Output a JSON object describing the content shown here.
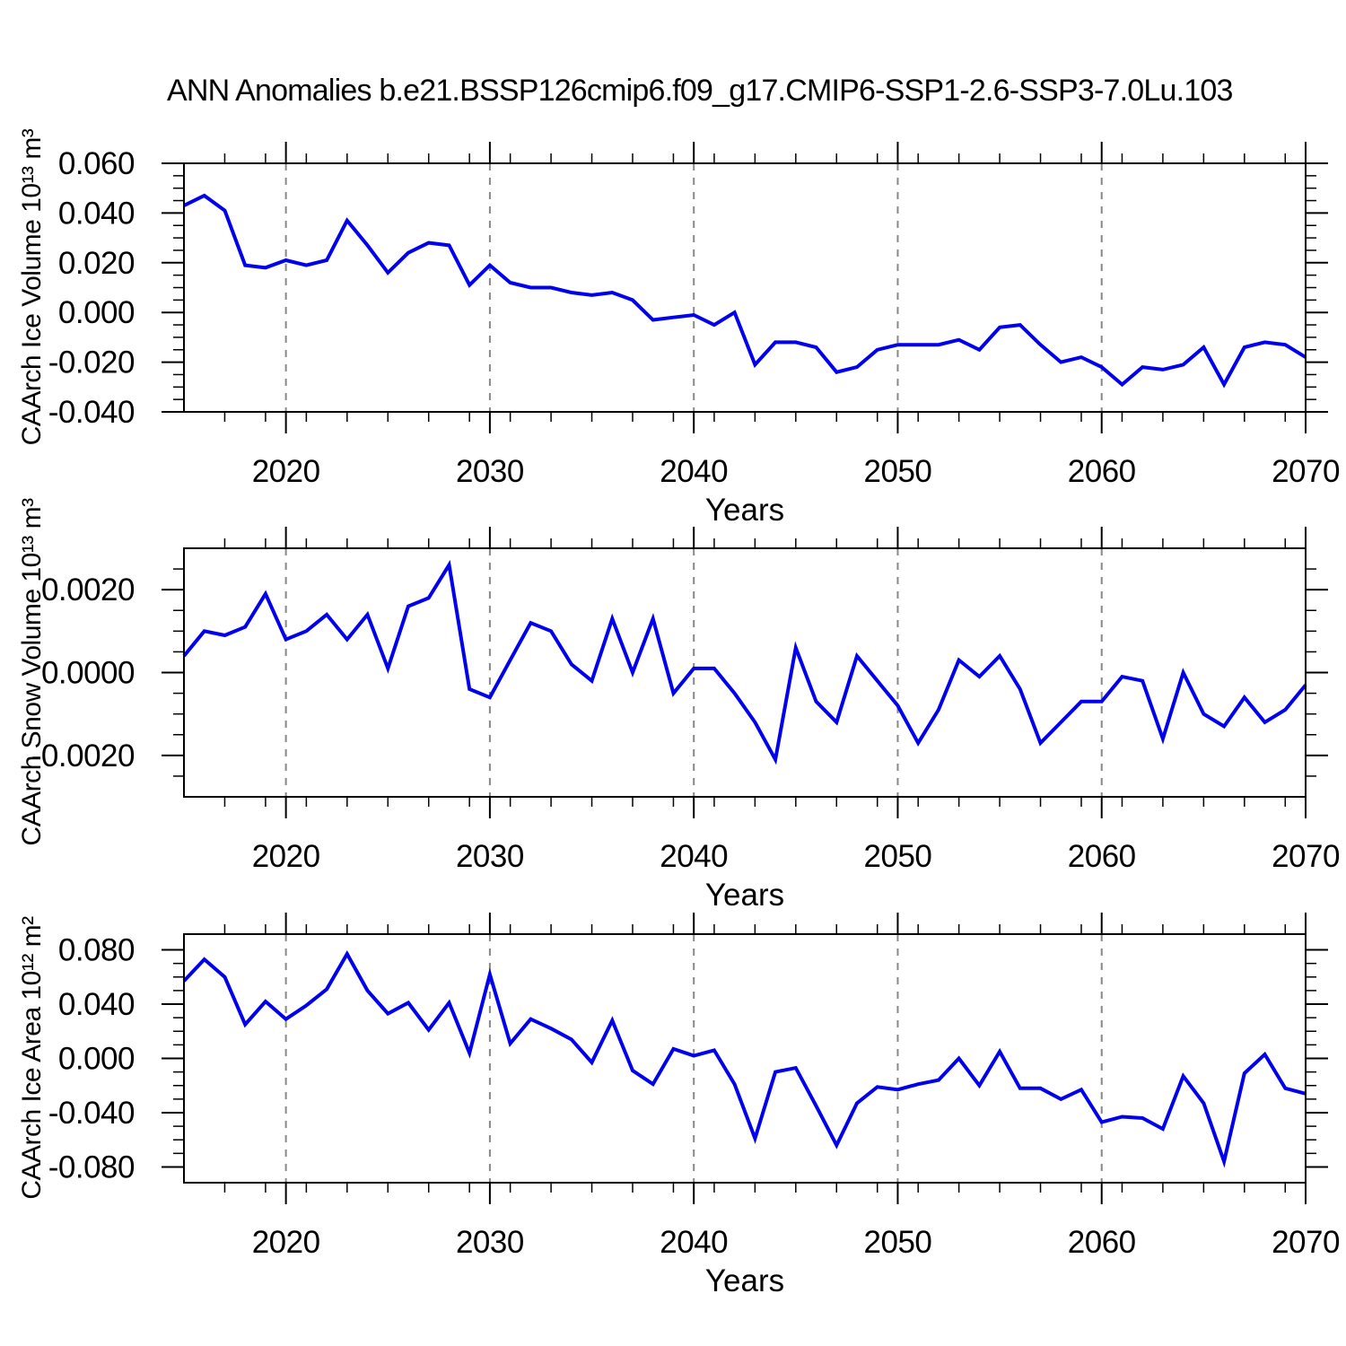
{
  "page": {
    "title": "ANN Anomalies b.e21.BSSP126cmip6.f09_g17.CMIP6-SSP1-2.6-SSP3-7.0Lu.103",
    "background": "#ffffff"
  },
  "chart_data": [
    {
      "type": "line",
      "ylabel": "CAArch Ice Volume 10¹³ m³",
      "xlabel": "Years",
      "line_color": "#0000EE",
      "gridline_color": "#888888",
      "axis_color": "#000000",
      "grid_vertical_dashed": true,
      "legend": "none",
      "xlim": [
        2015,
        2070
      ],
      "ylim": [
        -0.04,
        0.06
      ],
      "x_major_ticks": [
        {
          "value": 2020,
          "label": "2020"
        },
        {
          "value": 2030,
          "label": "2030"
        },
        {
          "value": 2040,
          "label": "2040"
        },
        {
          "value": 2050,
          "label": "2050"
        },
        {
          "value": 2060,
          "label": "2060"
        },
        {
          "value": 2070,
          "label": "2070"
        }
      ],
      "x_minor_step": 2,
      "y_major_ticks": [
        {
          "value": 0.06,
          "label": "0.060"
        },
        {
          "value": 0.04,
          "label": "0.040"
        },
        {
          "value": 0.02,
          "label": "0.020"
        },
        {
          "value": 0.0,
          "label": "0.000"
        },
        {
          "value": -0.02,
          "label": "-0.020"
        },
        {
          "value": -0.04,
          "label": "-0.040"
        }
      ],
      "y_minor_step": 0.005,
      "x": [
        2015,
        2016,
        2017,
        2018,
        2019,
        2020,
        2021,
        2022,
        2023,
        2024,
        2025,
        2026,
        2027,
        2028,
        2029,
        2030,
        2031,
        2032,
        2033,
        2034,
        2035,
        2036,
        2037,
        2038,
        2039,
        2040,
        2041,
        2042,
        2043,
        2044,
        2045,
        2046,
        2047,
        2048,
        2049,
        2050,
        2051,
        2052,
        2053,
        2054,
        2055,
        2056,
        2057,
        2058,
        2059,
        2060,
        2061,
        2062,
        2063,
        2064,
        2065,
        2066,
        2067,
        2068,
        2069,
        2070
      ],
      "values": [
        0.043,
        0.047,
        0.041,
        0.019,
        0.018,
        0.021,
        0.019,
        0.021,
        0.037,
        0.027,
        0.016,
        0.024,
        0.028,
        0.027,
        0.011,
        0.019,
        0.012,
        0.01,
        0.01,
        0.008,
        0.007,
        0.008,
        0.005,
        -0.003,
        -0.002,
        -0.001,
        -0.005,
        0.0,
        -0.021,
        -0.012,
        -0.012,
        -0.014,
        -0.024,
        -0.022,
        -0.015,
        -0.013,
        -0.013,
        -0.013,
        -0.011,
        -0.015,
        -0.006,
        -0.005,
        -0.013,
        -0.02,
        -0.018,
        -0.022,
        -0.029,
        -0.022,
        -0.023,
        -0.021,
        -0.014,
        -0.029,
        -0.014,
        -0.012,
        -0.013,
        -0.018
      ]
    },
    {
      "type": "line",
      "ylabel": "CAArch Snow Volume 10¹³ m³",
      "xlabel": "Years",
      "line_color": "#0000EE",
      "gridline_color": "#888888",
      "axis_color": "#000000",
      "grid_vertical_dashed": true,
      "legend": "none",
      "xlim": [
        2015,
        2070
      ],
      "ylim": [
        -0.003,
        0.003
      ],
      "x_major_ticks": [
        {
          "value": 2020,
          "label": "2020"
        },
        {
          "value": 2030,
          "label": "2030"
        },
        {
          "value": 2040,
          "label": "2040"
        },
        {
          "value": 2050,
          "label": "2050"
        },
        {
          "value": 2060,
          "label": "2060"
        },
        {
          "value": 2070,
          "label": "2070"
        }
      ],
      "x_minor_step": 2,
      "y_major_ticks": [
        {
          "value": 0.002,
          "label": "0.0020"
        },
        {
          "value": 0.0,
          "label": "0.0000"
        },
        {
          "value": -0.002,
          "label": "-0.0020"
        }
      ],
      "y_minor_step": 0.0005,
      "x": [
        2015,
        2016,
        2017,
        2018,
        2019,
        2020,
        2021,
        2022,
        2023,
        2024,
        2025,
        2026,
        2027,
        2028,
        2029,
        2030,
        2031,
        2032,
        2033,
        2034,
        2035,
        2036,
        2037,
        2038,
        2039,
        2040,
        2041,
        2042,
        2043,
        2044,
        2045,
        2046,
        2047,
        2048,
        2049,
        2050,
        2051,
        2052,
        2053,
        2054,
        2055,
        2056,
        2057,
        2058,
        2059,
        2060,
        2061,
        2062,
        2063,
        2064,
        2065,
        2066,
        2067,
        2068,
        2069,
        2070
      ],
      "values": [
        0.0004,
        0.001,
        0.0009,
        0.0011,
        0.0019,
        0.0008,
        0.001,
        0.0014,
        0.0008,
        0.0014,
        0.0001,
        0.0016,
        0.0018,
        0.0026,
        -0.0004,
        -0.0006,
        0.0003,
        0.0012,
        0.001,
        0.0002,
        -0.0002,
        0.0013,
        0.0,
        0.0013,
        -0.0005,
        0.0001,
        0.0001,
        -0.0005,
        -0.0012,
        -0.0021,
        0.0006,
        -0.0007,
        -0.0012,
        0.0004,
        -0.0002,
        -0.0008,
        -0.0017,
        -0.0009,
        0.0003,
        -0.0001,
        0.0004,
        -0.0004,
        -0.0017,
        -0.0012,
        -0.0007,
        -0.0007,
        -0.0001,
        -0.0002,
        -0.0016,
        0.0,
        -0.001,
        -0.0013,
        -0.0006,
        -0.0012,
        -0.0009,
        -0.0003
      ]
    },
    {
      "type": "line",
      "ylabel": "CAArch Ice Area 10¹² m²",
      "xlabel": "Years",
      "line_color": "#0000EE",
      "gridline_color": "#888888",
      "axis_color": "#000000",
      "grid_vertical_dashed": true,
      "legend": "none",
      "xlim": [
        2015,
        2070
      ],
      "ylim": [
        -0.0916,
        0.0916
      ],
      "x_major_ticks": [
        {
          "value": 2020,
          "label": "2020"
        },
        {
          "value": 2030,
          "label": "2030"
        },
        {
          "value": 2040,
          "label": "2040"
        },
        {
          "value": 2050,
          "label": "2050"
        },
        {
          "value": 2060,
          "label": "2060"
        },
        {
          "value": 2070,
          "label": "2070"
        }
      ],
      "x_minor_step": 2,
      "y_major_ticks": [
        {
          "value": 0.08,
          "label": "0.080"
        },
        {
          "value": 0.04,
          "label": "0.040"
        },
        {
          "value": 0.0,
          "label": "0.000"
        },
        {
          "value": -0.04,
          "label": "-0.040"
        },
        {
          "value": -0.08,
          "label": "-0.080"
        }
      ],
      "y_minor_step": 0.01,
      "x": [
        2015,
        2016,
        2017,
        2018,
        2019,
        2020,
        2021,
        2022,
        2023,
        2024,
        2025,
        2026,
        2027,
        2028,
        2029,
        2030,
        2031,
        2032,
        2033,
        2034,
        2035,
        2036,
        2037,
        2038,
        2039,
        2040,
        2041,
        2042,
        2043,
        2044,
        2045,
        2046,
        2047,
        2048,
        2049,
        2050,
        2051,
        2052,
        2053,
        2054,
        2055,
        2056,
        2057,
        2058,
        2059,
        2060,
        2061,
        2062,
        2063,
        2064,
        2065,
        2066,
        2067,
        2068,
        2069,
        2070
      ],
      "values": [
        0.057,
        0.073,
        0.06,
        0.025,
        0.042,
        0.029,
        0.039,
        0.051,
        0.077,
        0.05,
        0.033,
        0.041,
        0.021,
        0.041,
        0.004,
        0.062,
        0.011,
        0.029,
        0.022,
        0.014,
        -0.003,
        0.028,
        -0.009,
        -0.019,
        0.007,
        0.002,
        0.006,
        -0.019,
        -0.059,
        -0.01,
        -0.007,
        -0.035,
        -0.064,
        -0.033,
        -0.021,
        -0.023,
        -0.019,
        -0.016,
        0.0,
        -0.02,
        0.005,
        -0.022,
        -0.022,
        -0.03,
        -0.023,
        -0.047,
        -0.043,
        -0.044,
        -0.052,
        -0.013,
        -0.033,
        -0.076,
        -0.011,
        0.003,
        -0.022,
        -0.026
      ]
    }
  ]
}
